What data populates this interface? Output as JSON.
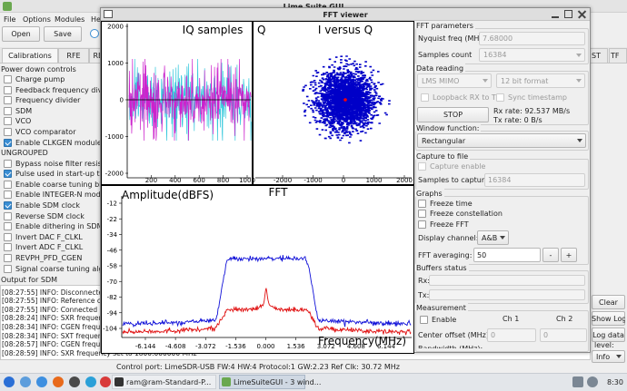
{
  "window_title": "Lime Suite GUI",
  "menu": [
    "File",
    "Options",
    "Modules",
    "Help"
  ],
  "toolbar": [
    "Open",
    "Save"
  ],
  "tabs": [
    "Calibrations",
    "RFE",
    "RB"
  ],
  "right_tabs": [
    "ST",
    "TF"
  ],
  "left_panel": {
    "groups": [
      {
        "title": "Power down controls",
        "items": [
          {
            "label": "Charge pump",
            "checked": false
          },
          {
            "label": "Feedback frequency divider",
            "checked": false
          },
          {
            "label": "Frequency divider",
            "checked": false
          },
          {
            "label": "SDM",
            "checked": false
          },
          {
            "label": "VCO",
            "checked": false
          },
          {
            "label": "VCO comparator",
            "checked": false
          },
          {
            "label": "Enable CLKGEN module",
            "checked": true
          }
        ]
      },
      {
        "title": "UNGROUPED",
        "items": [
          {
            "label": "Bypass noise filter resistor",
            "checked": false
          },
          {
            "label": "Pulse used in start-up to res",
            "checked": true
          },
          {
            "label": "Enable coarse tuning block",
            "checked": false
          },
          {
            "label": "Enable INTEGER-N mode",
            "checked": false
          },
          {
            "label": "Enable SDM clock",
            "checked": true
          },
          {
            "label": "Reverse SDM clock",
            "checked": false
          },
          {
            "label": "Enable dithering in SDM",
            "checked": false
          },
          {
            "label": "Invert DAC F_CLKL",
            "checked": false
          },
          {
            "label": "Invert ADC F_CLKL",
            "checked": false
          },
          {
            "label": "REVPH_PFD_CGEN",
            "checked": false
          },
          {
            "label": "Signal coarse tuning algorit",
            "checked": false
          }
        ]
      }
    ],
    "footer": "Output for SDM"
  },
  "log": [
    "[08:27:55] INFO: Disconnected C",
    "[08:27:55] INFO: Reference cloc",
    "[08:27:55] INFO: Connected Con",
    "[08:28:24] INFO: SXR frequency",
    "[08:28:34] INFO: CGEN frequenc",
    "[08:28:34] INFO: SXT frequency",
    "[08:28:57] INFO: CGEN frequenc",
    "[08:28:59] INFO: SXR frequency set to 1800.000000 MHz"
  ],
  "log_buttons": [
    "Clear",
    "Show Log",
    "Log data"
  ],
  "log_level": {
    "label": "level:",
    "value": "Info"
  },
  "status": "Control port: LimeSDR-USB FW:4 HW:4 Protocol:1 GW:2.23 Ref Clk: 30.72 MHz",
  "taskbar": {
    "windows": [
      "ram@ram-Standard-P...",
      "LimeSuiteGUI - 3 wind..."
    ],
    "clock": "8:30"
  },
  "fft_viewer": {
    "title": "FFT viewer",
    "iq_plot": {
      "title": "IQ samples",
      "yticks": [
        2000,
        1000,
        0,
        -1000,
        -2000
      ],
      "xticks": [
        200,
        400,
        600,
        800,
        1000
      ]
    },
    "constellation": {
      "title": "I versus Q",
      "y_label": "Q",
      "xticks": [
        -2000,
        -1000,
        0,
        1000,
        2000
      ]
    },
    "fft": {
      "title": "FFT",
      "y_label": "Amplitude(dBFS)",
      "x_label": "Frequency(MHz)",
      "yticks": [
        -12,
        -22,
        -34,
        -46,
        -58,
        -70,
        -82,
        -94,
        -104
      ],
      "xticks": [
        -6.144,
        -4.608,
        -3.072,
        -1.536,
        {
          "value": 0,
          "label": "0.000"
        },
        1.536,
        3.072,
        4.608,
        6.144
      ]
    },
    "panel": {
      "fft_parameters": {
        "title": "FFT parameters",
        "nyquist_label": "Nyquist freq (MHz):",
        "nyquist": "7.68000",
        "samples_label": "Samples count",
        "samples": "16384"
      },
      "data_reading": {
        "title": "Data reading",
        "mode": "LMS MIMO",
        "format": "12 bit format",
        "loopback": "Loopback RX to TX",
        "sync": "Sync timestamp",
        "button": "STOP",
        "rx_rate": "Rx rate: 92.537 MB/s",
        "tx_rate": "Tx rate: 0 B/s"
      },
      "window_function": {
        "title": "Window function:",
        "value": "Rectangular"
      },
      "capture": {
        "title": "Capture to file",
        "enable": "Capture enable",
        "samples_label": "Samples to capture:",
        "samples": "16384"
      },
      "graphs": {
        "title": "Graphs",
        "freeze": [
          "Freeze time",
          "Freeze constellation",
          "Freeze FFT"
        ],
        "channel_label": "Display channel:",
        "channel": "A&B",
        "averaging_label": "FFT averaging:",
        "averaging": "50",
        "averaging_buttons": [
          "-",
          "+"
        ]
      },
      "buffers": {
        "title": "Buffers status",
        "rx": "Rx:",
        "tx": "Tx:"
      },
      "measurement": {
        "title": "Measurement",
        "enable": "Enable",
        "channels": [
          "Ch 1",
          "Ch 2"
        ],
        "center_label": "Center offset (MHz):",
        "center": [
          "0",
          "0"
        ],
        "bandwidth_label": "Bandwidth (MHz):"
      }
    }
  }
}
